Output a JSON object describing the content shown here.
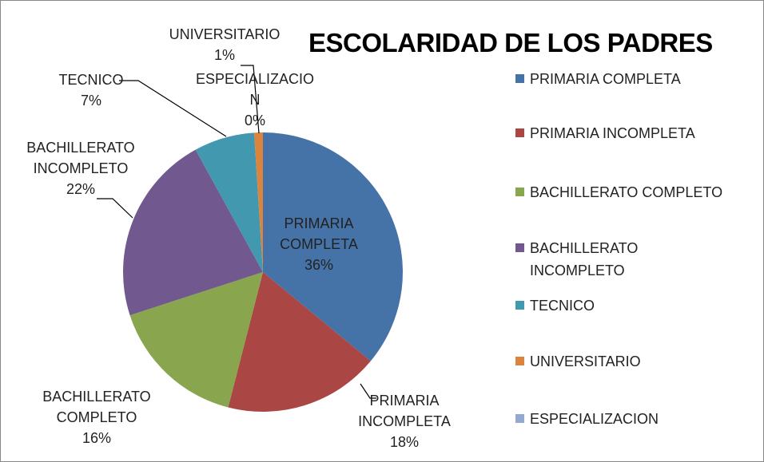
{
  "chart_data": {
    "type": "pie",
    "title": "ESCOLARIDAD DE LOS PADRES",
    "categories": [
      "PRIMARIA COMPLETA",
      "PRIMARIA INCOMPLETA",
      "BACHILLERATO COMPLETO",
      "BACHILLERATO INCOMPLETO",
      "TECNICO",
      "UNIVERSITARIO",
      "ESPECIALIZACION"
    ],
    "values": [
      36,
      18,
      16,
      22,
      7,
      1,
      0
    ],
    "value_labels": [
      "36%",
      "18%",
      "16%",
      "22%",
      "7%",
      "1%",
      "0%"
    ],
    "colors": [
      "#4572a7",
      "#aa4643",
      "#89a54e",
      "#71588f",
      "#4198af",
      "#db843d",
      "#93a9cf"
    ],
    "legend": "right"
  }
}
